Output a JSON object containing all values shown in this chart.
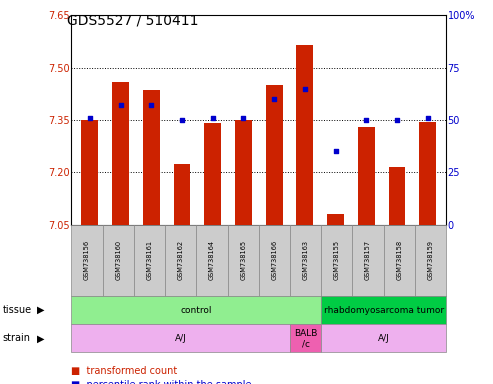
{
  "title": "GDS5527 / 510411",
  "samples": [
    "GSM738156",
    "GSM738160",
    "GSM738161",
    "GSM738162",
    "GSM738164",
    "GSM738165",
    "GSM738166",
    "GSM738163",
    "GSM738155",
    "GSM738157",
    "GSM738158",
    "GSM738159"
  ],
  "bar_values": [
    7.35,
    7.46,
    7.435,
    7.225,
    7.34,
    7.35,
    7.45,
    7.565,
    7.08,
    7.33,
    7.215,
    7.345
  ],
  "dot_values": [
    51,
    57,
    57,
    50,
    51,
    51,
    60,
    65,
    35,
    50,
    50,
    51
  ],
  "y_min": 7.05,
  "y_max": 7.65,
  "y_ticks": [
    7.05,
    7.2,
    7.35,
    7.5,
    7.65
  ],
  "y2_ticks": [
    0,
    25,
    50,
    75,
    100
  ],
  "bar_color": "#CC2200",
  "dot_color": "#0000CC",
  "base_value": 7.05,
  "bg_color": "#FFFFFF",
  "tick_color_left": "#CC2200",
  "tick_color_right": "#0000CC",
  "tissue_data": [
    {
      "text": "control",
      "start": 0,
      "end": 8,
      "color": "#90EE90"
    },
    {
      "text": "rhabdomyosarcoma tumor",
      "start": 8,
      "end": 12,
      "color": "#00CC44"
    }
  ],
  "strain_data": [
    {
      "text": "A/J",
      "start": 0,
      "end": 7,
      "color": "#EEB0EE"
    },
    {
      "text": "BALB\n/c",
      "start": 7,
      "end": 8,
      "color": "#EE60B0"
    },
    {
      "text": "A/J",
      "start": 8,
      "end": 12,
      "color": "#EEB0EE"
    }
  ]
}
